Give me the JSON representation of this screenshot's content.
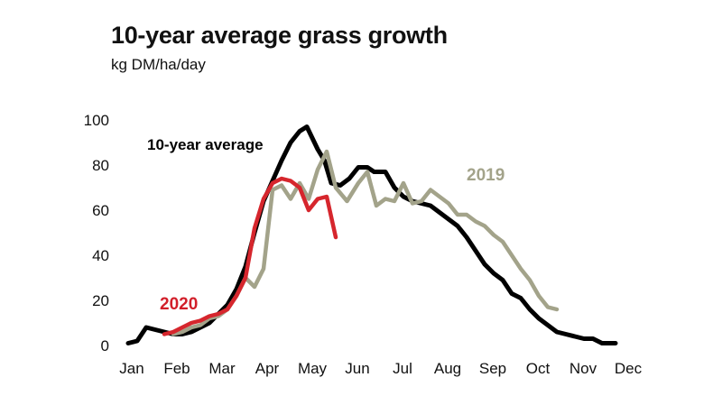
{
  "title": "10-year average grass growth",
  "subtitle": "kg DM/ha/day",
  "chart_data": {
    "type": "line",
    "title": "10-year average grass growth",
    "ylabel": "kg DM/ha/day",
    "xlabel": "",
    "ylim": [
      0,
      100
    ],
    "xlim": [
      0,
      11.2
    ],
    "y_ticks": [
      "0",
      "20",
      "40",
      "60",
      "80",
      "100"
    ],
    "x_ticks": [
      "Jan",
      "Feb",
      "Mar",
      "Apr",
      "May",
      "Jun",
      "Jul",
      "Aug",
      "Sep",
      "Oct",
      "Nov",
      "Dec"
    ],
    "grid": false,
    "legend": "direct labels on lines",
    "series": [
      {
        "name": "10-year average",
        "color": "#000000",
        "label_color": "#000000",
        "points": [
          [
            0,
            1
          ],
          [
            0.2,
            2
          ],
          [
            0.4,
            8
          ],
          [
            0.6,
            7
          ],
          [
            0.8,
            6
          ],
          [
            1.0,
            5
          ],
          [
            1.2,
            5
          ],
          [
            1.4,
            6
          ],
          [
            1.6,
            8
          ],
          [
            1.8,
            10
          ],
          [
            2.0,
            14
          ],
          [
            2.2,
            18
          ],
          [
            2.4,
            25
          ],
          [
            2.6,
            35
          ],
          [
            2.8,
            50
          ],
          [
            3.0,
            64
          ],
          [
            3.2,
            73
          ],
          [
            3.4,
            82
          ],
          [
            3.6,
            90
          ],
          [
            3.8,
            95
          ],
          [
            3.96,
            97
          ],
          [
            4.2,
            87
          ],
          [
            4.35,
            82
          ],
          [
            4.5,
            72
          ],
          [
            4.7,
            71
          ],
          [
            4.9,
            74
          ],
          [
            5.1,
            79
          ],
          [
            5.3,
            79
          ],
          [
            5.45,
            77
          ],
          [
            5.7,
            77
          ],
          [
            5.9,
            70
          ],
          [
            6.1,
            66
          ],
          [
            6.3,
            64
          ],
          [
            6.5,
            63
          ],
          [
            6.7,
            62
          ],
          [
            6.9,
            59
          ],
          [
            7.1,
            56
          ],
          [
            7.3,
            53
          ],
          [
            7.5,
            48
          ],
          [
            7.7,
            42
          ],
          [
            7.9,
            36
          ],
          [
            8.1,
            32
          ],
          [
            8.3,
            29
          ],
          [
            8.5,
            23
          ],
          [
            8.7,
            21
          ],
          [
            8.9,
            16
          ],
          [
            9.1,
            12
          ],
          [
            9.3,
            9
          ],
          [
            9.5,
            6
          ],
          [
            9.7,
            5
          ],
          [
            9.9,
            4
          ],
          [
            10.1,
            3
          ],
          [
            10.3,
            3
          ],
          [
            10.5,
            1
          ],
          [
            10.7,
            1
          ],
          [
            10.8,
            1
          ]
        ]
      },
      {
        "name": "2019",
        "color": "#a3a38a",
        "label_color": "#a3a38a",
        "points": [
          [
            1.0,
            5
          ],
          [
            1.2,
            6
          ],
          [
            1.4,
            8
          ],
          [
            1.6,
            9
          ],
          [
            1.8,
            12
          ],
          [
            2.0,
            13
          ],
          [
            2.2,
            16
          ],
          [
            2.4,
            22
          ],
          [
            2.6,
            30
          ],
          [
            2.8,
            26
          ],
          [
            3.0,
            34
          ],
          [
            3.2,
            69
          ],
          [
            3.4,
            71
          ],
          [
            3.6,
            65
          ],
          [
            3.8,
            72
          ],
          [
            4.0,
            65
          ],
          [
            4.2,
            78
          ],
          [
            4.4,
            86
          ],
          [
            4.6,
            70
          ],
          [
            4.85,
            64
          ],
          [
            5.1,
            72
          ],
          [
            5.3,
            77
          ],
          [
            5.5,
            62
          ],
          [
            5.7,
            65
          ],
          [
            5.9,
            64
          ],
          [
            6.1,
            72
          ],
          [
            6.3,
            63
          ],
          [
            6.5,
            64
          ],
          [
            6.7,
            69
          ],
          [
            6.9,
            66
          ],
          [
            7.1,
            63
          ],
          [
            7.3,
            58
          ],
          [
            7.5,
            58
          ],
          [
            7.7,
            55
          ],
          [
            7.9,
            53
          ],
          [
            8.1,
            49
          ],
          [
            8.3,
            46
          ],
          [
            8.5,
            40
          ],
          [
            8.7,
            34
          ],
          [
            8.9,
            29
          ],
          [
            9.1,
            22
          ],
          [
            9.3,
            17
          ],
          [
            9.5,
            16
          ]
        ]
      },
      {
        "name": "2020",
        "color": "#d6262d",
        "label_color": "#d21f2a",
        "points": [
          [
            0.8,
            5
          ],
          [
            1.0,
            6
          ],
          [
            1.2,
            8
          ],
          [
            1.4,
            10
          ],
          [
            1.6,
            11
          ],
          [
            1.8,
            13
          ],
          [
            2.0,
            14
          ],
          [
            2.2,
            16
          ],
          [
            2.4,
            22
          ],
          [
            2.6,
            30
          ],
          [
            2.8,
            52
          ],
          [
            3.0,
            65
          ],
          [
            3.2,
            72
          ],
          [
            3.4,
            74
          ],
          [
            3.6,
            73
          ],
          [
            3.8,
            70
          ],
          [
            4.0,
            60
          ],
          [
            4.2,
            65
          ],
          [
            4.4,
            66
          ],
          [
            4.6,
            48
          ]
        ]
      }
    ],
    "annotations": [
      {
        "text": "10-year average",
        "series": "10-year average"
      },
      {
        "text": "2019",
        "series": "2019"
      },
      {
        "text": "2020",
        "series": "2020"
      }
    ]
  }
}
